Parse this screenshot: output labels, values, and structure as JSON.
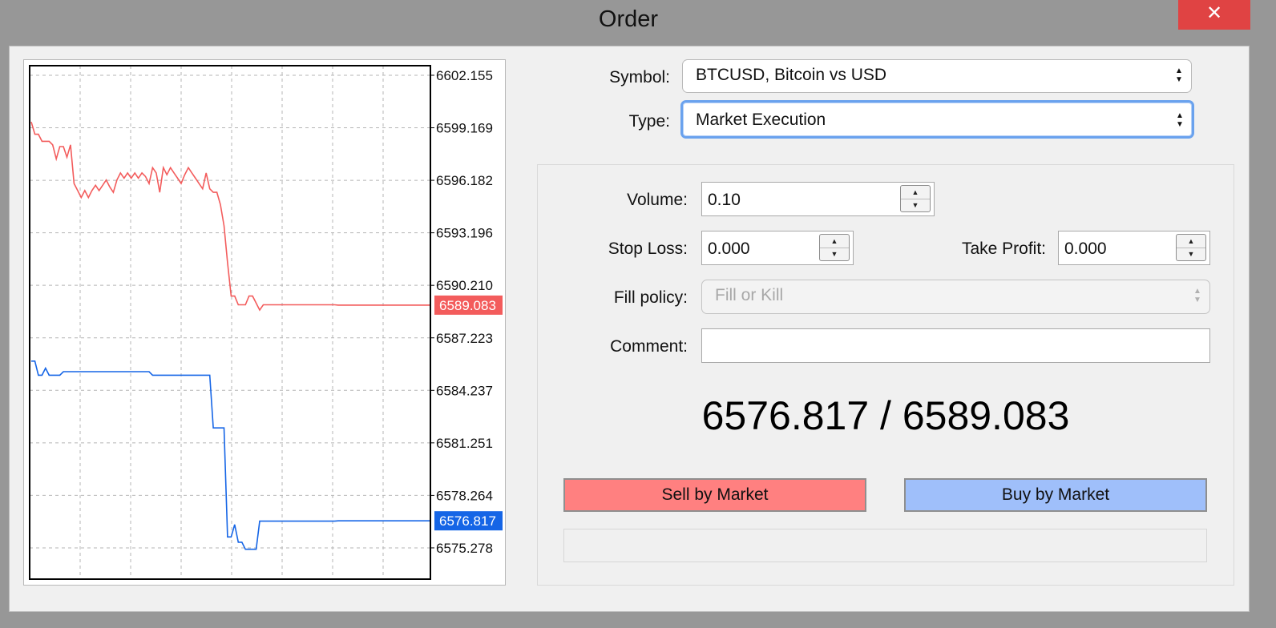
{
  "window": {
    "title": "Order",
    "close_glyph": "✕"
  },
  "symbol": {
    "label": "Symbol:",
    "value": "BTCUSD, Bitcoin vs USD"
  },
  "type": {
    "label": "Type:",
    "value": "Market Execution"
  },
  "volume": {
    "label": "Volume:",
    "value": "0.10"
  },
  "stop_loss": {
    "label": "Stop Loss:",
    "value": "0.000"
  },
  "take_profit": {
    "label": "Take Profit:",
    "value": "0.000"
  },
  "fill_policy": {
    "label": "Fill policy:",
    "value": "Fill or Kill"
  },
  "comment": {
    "label": "Comment:",
    "value": ""
  },
  "quote": "6576.817 / 6589.083",
  "buttons": {
    "sell": "Sell by Market",
    "buy": "Buy by Market"
  },
  "colors": {
    "ask_line": "#f35c5c",
    "bid_line": "#1565e6",
    "sell_button": "#ff8080",
    "buy_button": "#9fbffa",
    "close_button": "#e04343"
  },
  "chart_data": {
    "type": "line",
    "y_ticks": [
      "6602.155",
      "6599.169",
      "6596.182",
      "6593.196",
      "6590.210",
      "6587.223",
      "6584.237",
      "6581.251",
      "6578.264",
      "6575.278"
    ],
    "ylim": [
      6573.5,
      6602.7
    ],
    "grid": true,
    "current_ask": "6589.083",
    "current_bid": "6576.817",
    "series": [
      {
        "color": "#f35c5c",
        "values": [
          6599.5,
          6598.8,
          6598.8,
          6598.4,
          6598.4,
          6598.4,
          6598.2,
          6597.4,
          6598.1,
          6598.1,
          6597.5,
          6598.2,
          6596.0,
          6595.6,
          6595.2,
          6595.6,
          6595.2,
          6595.6,
          6595.9,
          6595.6,
          6595.9,
          6596.2,
          6595.8,
          6595.5,
          6596.2,
          6596.6,
          6596.3,
          6596.6,
          6596.3,
          6596.6,
          6596.3,
          6596.6,
          6596.4,
          6596.0,
          6596.9,
          6596.6,
          6595.5,
          6596.9,
          6596.5,
          6596.9,
          6596.6,
          6596.3,
          6596.0,
          6596.5,
          6596.9,
          6596.6,
          6596.3,
          6596.0,
          6595.7,
          6596.6,
          6595.7,
          6595.5,
          6595.5,
          6594.8,
          6593.6,
          6591.5,
          6589.6,
          6589.6,
          6589.1,
          6589.1,
          6589.1,
          6589.6,
          6589.6,
          6589.2,
          6588.8,
          6589.1,
          6589.1,
          6589.1,
          6589.1,
          6589.1,
          6589.1,
          6589.1,
          6589.1,
          6589.1,
          6589.1,
          6589.1,
          6589.1,
          6589.1,
          6589.1,
          6589.1,
          6589.1,
          6589.1,
          6589.1,
          6589.1,
          6589.1,
          6589.1,
          6589.083
        ]
      },
      {
        "color": "#1565e6",
        "values": [
          6585.9,
          6585.9,
          6585.1,
          6585.1,
          6585.5,
          6585.1,
          6585.1,
          6585.1,
          6585.1,
          6585.3,
          6585.3,
          6585.3,
          6585.3,
          6585.3,
          6585.3,
          6585.3,
          6585.3,
          6585.3,
          6585.3,
          6585.3,
          6585.3,
          6585.3,
          6585.3,
          6585.3,
          6585.3,
          6585.3,
          6585.3,
          6585.3,
          6585.3,
          6585.3,
          6585.3,
          6585.3,
          6585.3,
          6585.3,
          6585.1,
          6585.1,
          6585.1,
          6585.1,
          6585.1,
          6585.1,
          6585.1,
          6585.1,
          6585.1,
          6585.1,
          6585.1,
          6585.1,
          6585.1,
          6585.1,
          6585.1,
          6585.1,
          6585.1,
          6582.1,
          6582.1,
          6582.1,
          6582.1,
          6575.9,
          6575.9,
          6576.6,
          6575.6,
          6575.6,
          6575.2,
          6575.2,
          6575.2,
          6575.2,
          6576.8,
          6576.8,
          6576.8,
          6576.8,
          6576.8,
          6576.8,
          6576.8,
          6576.8,
          6576.8,
          6576.8,
          6576.8,
          6576.8,
          6576.8,
          6576.8,
          6576.8,
          6576.8,
          6576.8,
          6576.8,
          6576.8,
          6576.8,
          6576.8,
          6576.8,
          6576.817
        ]
      }
    ]
  }
}
